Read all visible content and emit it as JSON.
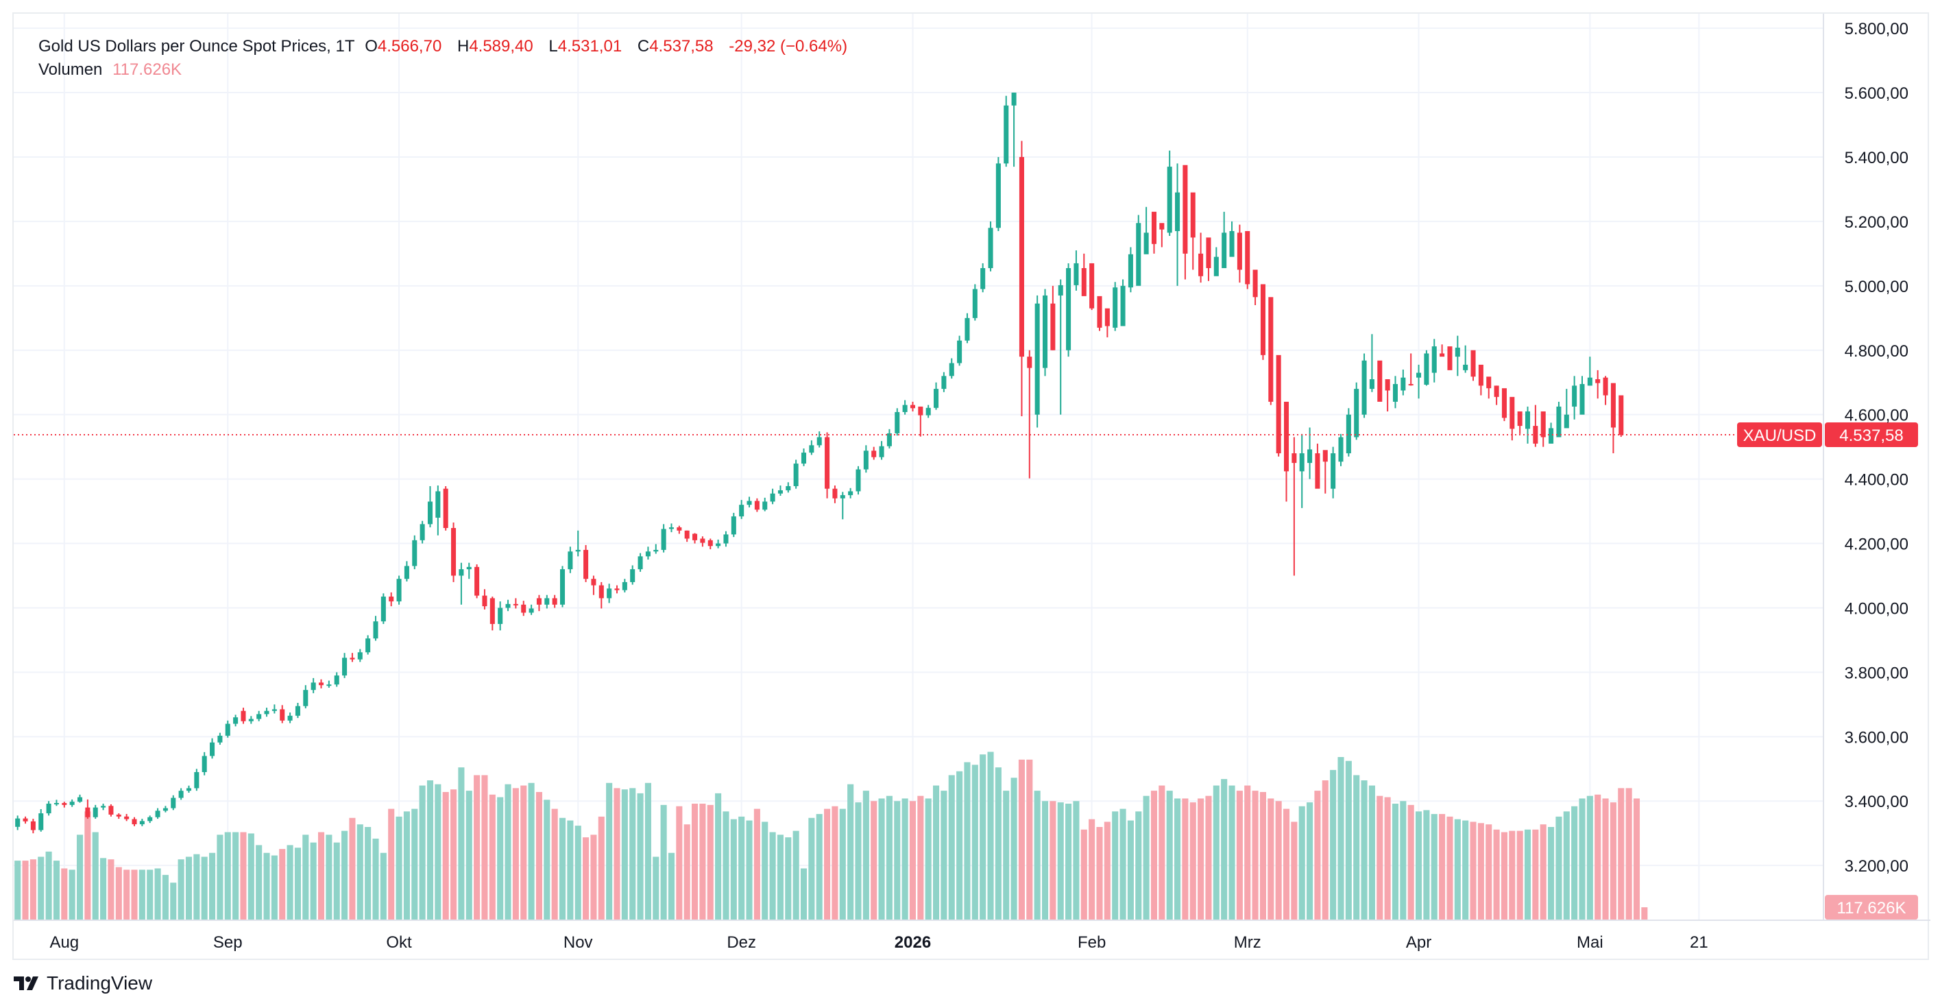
{
  "legend": {
    "symbol_title": "Gold US Dollars per Ounce Spot Prices, 1T",
    "open_label": "O",
    "open": "4.566,70",
    "high_label": "H",
    "high": "4.589,40",
    "low_label": "L",
    "low": "4.531,01",
    "close_label": "C",
    "close": "4.537,58",
    "change": "-29,32 (−0.64%)",
    "volume_label": "Volumen",
    "volume": "117.626K"
  },
  "brand": {
    "name": "TradingView",
    "logo_icon": "tradingview-logo-icon"
  },
  "colors": {
    "up": "#26a69a",
    "down": "#ef5350",
    "up_body": "#22ab94",
    "down_body": "#f23645",
    "vol_up": "#8fd3c8",
    "vol_down": "#f7a5ad",
    "price_line": "#f23645",
    "grid": "#f0f3fa",
    "label_bg": "#f23645"
  },
  "chart_data": {
    "type": "candlestick",
    "title": "Gold US Dollars per Ounce Spot Prices, 1T",
    "symbol": "XAU/USD",
    "last_price": 4537.58,
    "last_price_label": "4.537,58",
    "last_volume_label": "117.626K",
    "y_axis": {
      "ticks": [
        3200,
        3400,
        3600,
        3800,
        4000,
        4200,
        4400,
        4600,
        4800,
        5000,
        5200,
        5400,
        5600,
        5800
      ],
      "tick_labels": [
        "3.200,00",
        "3.400,00",
        "3.600,00",
        "3.800,00",
        "4.000,00",
        "4.200,00",
        "4.400,00",
        "4.600,00",
        "4.800,00",
        "5.000,00",
        "5.200,00",
        "5.400,00",
        "5.600,00",
        "5.800,00"
      ],
      "range": [
        3030,
        5845
      ]
    },
    "x_axis": {
      "labels": [
        {
          "text": "Aug",
          "index": 6,
          "bold": false
        },
        {
          "text": "Sep",
          "index": 27,
          "bold": false
        },
        {
          "text": "Okt",
          "index": 49,
          "bold": false
        },
        {
          "text": "Nov",
          "index": 72,
          "bold": false
        },
        {
          "text": "Dez",
          "index": 93,
          "bold": false
        },
        {
          "text": "2026",
          "index": 115,
          "bold": true
        },
        {
          "text": "Feb",
          "index": 138,
          "bold": false
        },
        {
          "text": "Mrz",
          "index": 158,
          "bold": false
        },
        {
          "text": "Apr",
          "index": 180,
          "bold": false
        },
        {
          "text": "Mai",
          "index": 202,
          "bold": false
        },
        {
          "text": "21",
          "index": 216,
          "bold": false
        }
      ],
      "range": [
        -0.5,
        232
      ]
    },
    "volume_range": [
      0,
      900
    ],
    "closes": [
      3346,
      3337,
      3310,
      3362,
      3392,
      3394,
      3388,
      3398,
      3412,
      3350,
      3380,
      3385,
      3358,
      3352,
      3344,
      3328,
      3338,
      3350,
      3370,
      3378,
      3410,
      3432,
      3440,
      3490,
      3540,
      3582,
      3603,
      3640,
      3660,
      3648,
      3655,
      3670,
      3680,
      3685,
      3650,
      3665,
      3695,
      3745,
      3768,
      3760,
      3762,
      3790,
      3845,
      3840,
      3862,
      3905,
      3958,
      4035,
      4020,
      4090,
      4130,
      4210,
      4260,
      4330,
      4362,
      4248,
      4100,
      4120,
      4127,
      4038,
      4005,
      3950,
      4000,
      4012,
      4010,
      3985,
      3998,
      4010,
      4030,
      4010,
      4120,
      4175,
      4180,
      4090,
      4070,
      4030,
      4060,
      4055,
      4080,
      4120,
      4160,
      4175,
      4180,
      4245,
      4250,
      4240,
      4215,
      4210,
      4202,
      4192,
      4200,
      4228,
      4284,
      4320,
      4332,
      4305,
      4330,
      4355,
      4365,
      4378,
      4448,
      4482,
      4505,
      4530,
      4370,
      4340,
      4350,
      4362,
      4430,
      4488,
      4468,
      4502,
      4542,
      4608,
      4630,
      4620,
      4598,
      4621,
      4680,
      4720,
      4760,
      4830,
      4900,
      4990,
      5055,
      5180,
      5380,
      5560,
      5600,
      4780,
      4745,
      4945,
      4970,
      4800,
      5002,
      5055,
      5070,
      4968,
      4930,
      4870,
      4875,
      4995,
      5000,
      5098,
      5195,
      5165,
      5130,
      5175,
      5370,
      5290,
      5100,
      5150,
      5030,
      5055,
      5090,
      5165,
      5170,
      5050,
      5005,
      4965,
      4785,
      4640,
      4480,
      4424,
      4450,
      4480,
      4492,
      4370,
      4454,
      4480,
      4530,
      4600,
      4680,
      4768,
      4710,
      4640,
      4675,
      4695,
      4715,
      4693,
      4730,
      4790,
      4812,
      4780,
      4738,
      4808,
      4755,
      4718,
      4690,
      4682,
      4655,
      4590,
      4556,
      4565,
      4610,
      4510,
      4530,
      4558,
      4625,
      4600,
      4690,
      4695,
      4715,
      4698,
      4660,
      4560,
      4537
    ],
    "opens": [
      3320,
      3346,
      3337,
      3310,
      3362,
      3392,
      3394,
      3388,
      3398,
      3380,
      3350,
      3380,
      3385,
      3358,
      3352,
      3344,
      3328,
      3338,
      3350,
      3370,
      3378,
      3410,
      3432,
      3440,
      3490,
      3540,
      3582,
      3603,
      3640,
      3680,
      3648,
      3655,
      3670,
      3680,
      3685,
      3650,
      3665,
      3695,
      3745,
      3768,
      3760,
      3762,
      3790,
      3845,
      3840,
      3862,
      3905,
      3958,
      4035,
      4020,
      4090,
      4130,
      4210,
      4260,
      4280,
      4370,
      4248,
      4100,
      4120,
      4127,
      4038,
      4030,
      3950,
      4000,
      4012,
      4010,
      3985,
      4030,
      4010,
      4030,
      4010,
      4120,
      4175,
      4180,
      4090,
      4070,
      4030,
      4060,
      4055,
      4080,
      4120,
      4160,
      4175,
      4180,
      4245,
      4250,
      4240,
      4230,
      4215,
      4210,
      4192,
      4200,
      4228,
      4284,
      4320,
      4332,
      4305,
      4330,
      4355,
      4365,
      4378,
      4448,
      4482,
      4505,
      4530,
      4370,
      4340,
      4350,
      4362,
      4430,
      4488,
      4468,
      4502,
      4542,
      4608,
      4630,
      4625,
      4598,
      4621,
      4680,
      4720,
      4760,
      4830,
      4900,
      4990,
      5055,
      5180,
      5380,
      5560,
      5400,
      4780,
      4600,
      4745,
      4945,
      4970,
      4800,
      5002,
      5055,
      5070,
      4968,
      4930,
      4870,
      4875,
      4995,
      5000,
      5098,
      5230,
      5195,
      5165,
      5170,
      5375,
      5290,
      5100,
      5150,
      5030,
      5055,
      5090,
      5165,
      5170,
      5050,
      5005,
      4965,
      4785,
      4640,
      4480,
      4424,
      4450,
      4480,
      4490,
      4370,
      4454,
      4480,
      4530,
      4600,
      4680,
      4768,
      4710,
      4640,
      4675,
      4695,
      4715,
      4693,
      4730,
      4790,
      4812,
      4780,
      4738,
      4800,
      4755,
      4718,
      4690,
      4682,
      4655,
      4610,
      4556,
      4565,
      4610,
      4510,
      4530,
      4558,
      4625,
      4600,
      4690,
      4710,
      4715,
      4698,
      4660,
      4567
    ],
    "highs": [
      3355,
      3352,
      3345,
      3375,
      3400,
      3404,
      3398,
      3405,
      3420,
      3405,
      3388,
      3392,
      3390,
      3362,
      3360,
      3350,
      3345,
      3355,
      3378,
      3385,
      3418,
      3440,
      3448,
      3500,
      3552,
      3595,
      3612,
      3650,
      3668,
      3690,
      3664,
      3680,
      3690,
      3700,
      3698,
      3675,
      3705,
      3760,
      3782,
      3778,
      3774,
      3800,
      3860,
      3860,
      3872,
      3915,
      3975,
      4045,
      4048,
      4100,
      4145,
      4225,
      4270,
      4378,
      4380,
      4378,
      4265,
      4140,
      4140,
      4135,
      4058,
      4035,
      4020,
      4025,
      4030,
      4022,
      4010,
      4040,
      4040,
      4040,
      4130,
      4190,
      4240,
      4195,
      4100,
      4080,
      4075,
      4070,
      4090,
      4132,
      4170,
      4190,
      4198,
      4260,
      4262,
      4255,
      4240,
      4232,
      4222,
      4215,
      4212,
      4238,
      4295,
      4335,
      4345,
      4340,
      4342,
      4370,
      4380,
      4390,
      4460,
      4495,
      4520,
      4548,
      4545,
      4380,
      4360,
      4372,
      4440,
      4505,
      4500,
      4518,
      4555,
      4620,
      4645,
      4640,
      4625,
      4630,
      4700,
      4732,
      4775,
      4845,
      4915,
      5005,
      5070,
      5200,
      5400,
      5590,
      5600,
      5450,
      4800,
      4970,
      4990,
      5000,
      5020,
      5070,
      5110,
      5100,
      5020,
      4960,
      4920,
      5012,
      5020,
      5120,
      5220,
      5245,
      5210,
      5190,
      5420,
      5380,
      5305,
      5170,
      5165,
      5075,
      5120,
      5230,
      5200,
      5190,
      5070,
      5022,
      4975,
      4795,
      4720,
      4590,
      4530,
      4540,
      4560,
      4510,
      4480,
      4500,
      4540,
      4620,
      4700,
      4790,
      4850,
      4760,
      4705,
      4720,
      4740,
      4790,
      4755,
      4800,
      4835,
      4818,
      4800,
      4845,
      4815,
      4770,
      4730,
      4700,
      4690,
      4660,
      4610,
      4580,
      4625,
      4630,
      4545,
      4575,
      4640,
      4680,
      4720,
      4720,
      4780,
      4738,
      4720,
      4670,
      4589
    ],
    "lows": [
      3310,
      3330,
      3300,
      3305,
      3355,
      3385,
      3380,
      3382,
      3395,
      3345,
      3345,
      3372,
      3352,
      3345,
      3338,
      3322,
      3322,
      3332,
      3345,
      3365,
      3372,
      3404,
      3426,
      3432,
      3480,
      3532,
      3575,
      3597,
      3632,
      3640,
      3640,
      3648,
      3662,
      3672,
      3642,
      3642,
      3658,
      3688,
      3735,
      3750,
      3752,
      3755,
      3782,
      3832,
      3832,
      3855,
      3898,
      3950,
      4005,
      4010,
      4082,
      4120,
      4200,
      4250,
      4225,
      4240,
      4080,
      4010,
      4090,
      4030,
      3995,
      3930,
      3930,
      3990,
      3998,
      3975,
      3978,
      3990,
      3998,
      4000,
      4002,
      4108,
      4160,
      4080,
      4040,
      3998,
      4015,
      4045,
      4048,
      4072,
      4112,
      4150,
      4168,
      4172,
      4235,
      4230,
      4205,
      4200,
      4190,
      4182,
      4185,
      4190,
      4220,
      4276,
      4312,
      4298,
      4300,
      4322,
      4348,
      4358,
      4370,
      4440,
      4475,
      4498,
      4340,
      4325,
      4275,
      4340,
      4352,
      4420,
      4460,
      4460,
      4495,
      4535,
      4600,
      4610,
      4532,
      4590,
      4615,
      4670,
      4712,
      4752,
      4822,
      4892,
      4980,
      5045,
      5170,
      5370,
      5370,
      4595,
      4402,
      4560,
      4720,
      4800,
      4600,
      4780,
      4985,
      5040,
      4925,
      4860,
      4840,
      4860,
      4965,
      4980,
      5090,
      5140,
      5100,
      5120,
      5155,
      5000,
      5020,
      5050,
      5010,
      5015,
      5040,
      5080,
      5150,
      5010,
      4990,
      4940,
      4770,
      4630,
      4470,
      4330,
      4100,
      4310,
      4400,
      4440,
      4355,
      4340,
      4440,
      4470,
      4522,
      4590,
      4670,
      4700,
      4610,
      4620,
      4660,
      4690,
      4650,
      4690,
      4700,
      4785,
      4770,
      4720,
      4730,
      4705,
      4660,
      4650,
      4630,
      4580,
      4520,
      4540,
      4510,
      4500,
      4500,
      4510,
      4540,
      4590,
      4585,
      4670,
      4690,
      4650,
      4630,
      4480,
      4531
    ],
    "volumes": [
      230,
      230,
      235,
      245,
      265,
      230,
      200,
      195,
      330,
      420,
      340,
      240,
      235,
      205,
      195,
      195,
      195,
      195,
      200,
      175,
      145,
      235,
      245,
      255,
      245,
      260,
      330,
      340,
      340,
      340,
      335,
      290,
      260,
      250,
      275,
      290,
      280,
      330,
      300,
      340,
      330,
      300,
      345,
      395,
      370,
      360,
      315,
      260,
      430,
      400,
      420,
      430,
      520,
      540,
      525,
      495,
      505,
      590,
      500,
      560,
      560,
      485,
      475,
      525,
      510,
      520,
      530,
      495,
      465,
      430,
      395,
      385,
      365,
      320,
      330,
      400,
      530,
      510,
      505,
      510,
      490,
      530,
      245,
      445,
      260,
      440,
      370,
      450,
      450,
      445,
      490,
      420,
      390,
      400,
      385,
      430,
      380,
      340,
      330,
      320,
      345,
      200,
      395,
      410,
      430,
      440,
      430,
      525,
      455,
      500,
      460,
      470,
      480,
      460,
      470,
      460,
      480,
      470,
      520,
      500,
      560,
      575,
      610,
      600,
      640,
      650,
      590,
      500,
      550,
      620,
      620,
      500,
      460,
      460,
      455,
      450,
      460,
      350,
      390,
      360,
      380,
      420,
      430,
      385,
      420,
      480,
      500,
      520,
      500,
      470,
      470,
      455,
      470,
      480,
      520,
      545,
      520,
      500,
      520,
      500,
      495,
      470,
      460,
      430,
      380,
      440,
      455,
      500,
      540,
      580,
      630,
      615,
      560,
      540,
      520,
      480,
      475,
      450,
      460,
      445,
      420,
      425,
      410,
      410,
      400,
      390,
      385,
      380,
      375,
      370,
      350,
      340,
      345,
      345,
      350,
      350,
      370,
      360,
      400,
      420,
      440,
      470,
      480,
      485,
      470,
      455,
      510,
      510,
      470,
      50
    ]
  }
}
